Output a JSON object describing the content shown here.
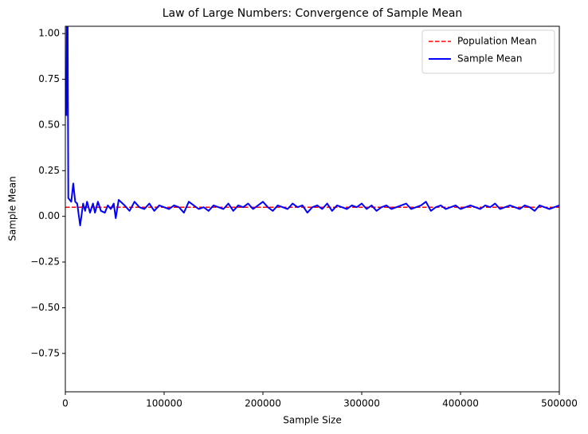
{
  "chart_data": {
    "type": "line",
    "title": "Law of Large Numbers: Convergence of Sample Mean",
    "x_label": "Sample Size",
    "y_label": "Sample Mean",
    "xlim": [
      0,
      500000
    ],
    "ylim": [
      -0.96,
      1.04
    ],
    "xticks": [
      0,
      100000,
      200000,
      300000,
      400000,
      500000
    ],
    "yticks": [
      {
        "value": -0.75,
        "label": "−0.75"
      },
      {
        "value": -0.5,
        "label": "−0.50"
      },
      {
        "value": -0.25,
        "label": "−0.25"
      },
      {
        "value": 0,
        "label": "0.00"
      },
      0.25,
      {
        "value": 0.5,
        "label": "0.50"
      },
      0.75,
      {
        "value": 1,
        "label": "1.00"
      }
    ],
    "legend": "upper right",
    "series": [
      {
        "name": "Population Mean",
        "color": "#ff0000",
        "linestyle": "dashed",
        "x": [
          0,
          500000
        ],
        "values": [
          0.05,
          0.05
        ]
      },
      {
        "name": "Sample Mean",
        "color": "#0000ff",
        "linestyle": "solid",
        "x": [
          1000,
          2000,
          3000,
          6000,
          8000,
          10000,
          12000,
          15000,
          18000,
          20000,
          22000,
          25000,
          28000,
          30000,
          33000,
          36000,
          40000,
          43000,
          46000,
          49000,
          51000,
          54000,
          60000,
          65000,
          70000,
          75000,
          80000,
          85000,
          90000,
          95000,
          100000,
          105000,
          110000,
          115000,
          120000,
          125000,
          130000,
          135000,
          140000,
          145000,
          150000,
          155000,
          160000,
          165000,
          170000,
          175000,
          180000,
          185000,
          190000,
          195000,
          200000,
          205000,
          210000,
          215000,
          220000,
          225000,
          230000,
          235000,
          240000,
          245000,
          250000,
          255000,
          260000,
          265000,
          270000,
          275000,
          280000,
          285000,
          290000,
          295000,
          300000,
          305000,
          310000,
          315000,
          320000,
          325000,
          330000,
          335000,
          340000,
          345000,
          350000,
          355000,
          360000,
          365000,
          370000,
          375000,
          380000,
          385000,
          390000,
          395000,
          400000,
          405000,
          410000,
          415000,
          420000,
          425000,
          430000,
          435000,
          440000,
          445000,
          450000,
          455000,
          460000,
          465000,
          470000,
          475000,
          480000,
          485000,
          490000,
          495000,
          500000
        ],
        "values": [
          0.55,
          1.6,
          0.1,
          0.08,
          0.18,
          0.08,
          0.07,
          -0.05,
          0.07,
          0.03,
          0.08,
          0.02,
          0.07,
          0.02,
          0.08,
          0.03,
          0.02,
          0.06,
          0.04,
          0.07,
          -0.01,
          0.09,
          0.06,
          0.03,
          0.08,
          0.05,
          0.04,
          0.07,
          0.03,
          0.06,
          0.05,
          0.04,
          0.06,
          0.05,
          0.02,
          0.08,
          0.06,
          0.04,
          0.05,
          0.03,
          0.06,
          0.05,
          0.04,
          0.07,
          0.03,
          0.06,
          0.05,
          0.07,
          0.04,
          0.06,
          0.08,
          0.05,
          0.03,
          0.06,
          0.05,
          0.04,
          0.07,
          0.05,
          0.06,
          0.02,
          0.05,
          0.06,
          0.04,
          0.07,
          0.03,
          0.06,
          0.05,
          0.04,
          0.06,
          0.05,
          0.07,
          0.04,
          0.06,
          0.03,
          0.05,
          0.06,
          0.04,
          0.05,
          0.06,
          0.07,
          0.04,
          0.05,
          0.06,
          0.08,
          0.03,
          0.05,
          0.06,
          0.04,
          0.05,
          0.06,
          0.04,
          0.05,
          0.06,
          0.05,
          0.04,
          0.06,
          0.05,
          0.07,
          0.04,
          0.05,
          0.06,
          0.05,
          0.04,
          0.06,
          0.05,
          0.03,
          0.06,
          0.05,
          0.04,
          0.05,
          0.06
        ]
      }
    ]
  }
}
